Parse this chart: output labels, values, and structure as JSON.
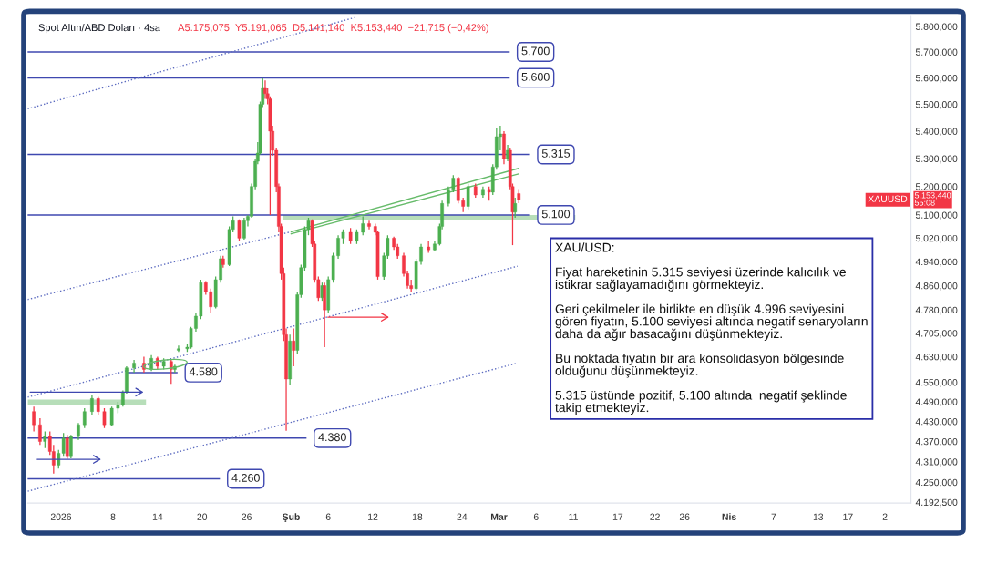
{
  "chart_data": {
    "type": "candlestick",
    "title": "Spot Altın/ABD Doları · 4sa",
    "annotations": [
      "A5.175,075  Y5.191,065  D5.141,140  K5.153,440  −21,715 (−0,42%)",
      "XAUUSD",
      "5.153,440\n55:08",
      "XAU/USD:\n\nFiyat hareketinin 5.315 seviyesi üzerinde kalıcılık ve\nistikrar sağlayamadığını görmekteyiz.\n\nGeri çekilmeler ile birlikte en düşük 4.996 seviyesini\ngören fiyatın, 5.100 seviyesi altında negatif senaryoların\ndaha da ağır basacağını düşünmekteyiz.\n\nBu noktada fiyatın bir ara konsolidasyon bölgesinde\nolduğunu düşünmekteyiz.\n\n5.315 üstünde pozitif, 5.100 altında  negatif şeklinde\ntakip etmekteyiz."
    ],
    "x": [
      "2025-12-28T08:00",
      "2025-12-29T04:00",
      "2025-12-29T20:00",
      "2025-12-30T12:00",
      "2025-12-31T00:00",
      "2025-12-31T16:00",
      "2026-01-01T08:00",
      "2026-01-01T20:00",
      "2026-01-02T08:00",
      "2026-01-03T08:00",
      "2026-01-04T04:00",
      "2026-01-05T04:00",
      "2026-01-06T00:00",
      "2026-01-06T20:00",
      "2026-01-07T20:00",
      "2026-01-08T16:00",
      "2026-01-09T08:00",
      "2026-01-09T20:00",
      "2026-01-10T20:00",
      "2026-01-12T04:00",
      "2026-01-13T04:00",
      "2026-01-14T00:00",
      "2026-01-14T20:00",
      "2026-01-15T20:00",
      "2026-01-16T08:00",
      "2026-01-16T20:00",
      "2026-01-18T00:00",
      "2026-01-18T12:00",
      "2026-01-19T04:00",
      "2026-01-19T20:00",
      "2026-01-20T12:00",
      "2026-01-21T04:00",
      "2026-01-21T20:00",
      "2026-01-22T12:00",
      "2026-01-22T20:00",
      "2026-01-23T16:00",
      "2026-01-24T04:00",
      "2026-01-25T00:00",
      "2026-01-25T16:00",
      "2026-01-26T04:00",
      "2026-01-26T16:00",
      "2026-01-27T04:00",
      "2026-01-27T12:00",
      "2026-01-27T20:00",
      "2026-01-28T04:00",
      "2026-01-28T12:00",
      "2026-01-28T20:00",
      "2026-01-29T04:00",
      "2026-01-29T12:00",
      "2026-01-30T00:00",
      "2026-01-30T08:00",
      "2026-01-30T16:00",
      "2026-01-31T00:00",
      "2026-01-31T08:00",
      "2026-01-31T20:00",
      "2026-02-01T08:00",
      "2026-02-01T20:00",
      "2026-02-02T08:00",
      "2026-02-02T20:00",
      "2026-02-03T08:00",
      "2026-02-03T20:00",
      "2026-02-04T04:00",
      "2026-02-04T16:00",
      "2026-02-05T04:00",
      "2026-02-05T12:00",
      "2026-02-06T00:00",
      "2026-02-06T16:00",
      "2026-02-07T08:00",
      "2026-02-08T00:00",
      "2026-02-09T00:00",
      "2026-02-09T20:00",
      "2026-02-10T16:00",
      "2026-02-11T12:00",
      "2026-02-12T08:00",
      "2026-02-12T16:00",
      "2026-02-13T12:00",
      "2026-02-14T00:00",
      "2026-02-14T20:00",
      "2026-02-15T08:00",
      "2026-02-16T04:00",
      "2026-02-16T16:00",
      "2026-02-17T04:00",
      "2026-02-17T20:00",
      "2026-02-18T12:00",
      "2026-02-19T12:00",
      "2026-02-20T08:00",
      "2026-02-21T00:00",
      "2026-02-21T08:00",
      "2026-02-22T04:00",
      "2026-02-22T20:00",
      "2026-02-23T12:00",
      "2026-02-24T04:00",
      "2026-02-24T20:00",
      "2026-02-25T20:00",
      "2026-02-26T20:00",
      "2026-02-27T16:00",
      "2026-02-28T04:00",
      "2026-02-28T16:00",
      "2026-03-01T04:00",
      "2026-03-01T16:00",
      "2026-03-02T04:00",
      "2026-03-02T12:00",
      "2026-03-02T20:00",
      "2026-03-03T04:00",
      "2026-03-03T16:00"
    ],
    "ohlc": [
      [
        4460,
        4475,
        4400,
        4420
      ],
      [
        4420,
        4440,
        4360,
        4370
      ],
      [
        4370,
        4400,
        4350,
        4385
      ],
      [
        4385,
        4400,
        4330,
        4340
      ],
      [
        4340,
        4360,
        4275,
        4300
      ],
      [
        4300,
        4345,
        4290,
        4335
      ],
      [
        4335,
        4395,
        4325,
        4380
      ],
      [
        4380,
        4390,
        4318,
        4325
      ],
      [
        4325,
        4390,
        4320,
        4385
      ],
      [
        4385,
        4425,
        4375,
        4420
      ],
      [
        4420,
        4470,
        4410,
        4460
      ],
      [
        4460,
        4510,
        4450,
        4500
      ],
      [
        4500,
        4505,
        4450,
        4460
      ],
      [
        4460,
        4470,
        4410,
        4420
      ],
      [
        4420,
        4475,
        4415,
        4470
      ],
      [
        4470,
        4490,
        4455,
        4480
      ],
      [
        4480,
        4525,
        4475,
        4520
      ],
      [
        4520,
        4600,
        4515,
        4595
      ],
      [
        4595,
        4620,
        4580,
        4610
      ],
      [
        4610,
        4630,
        4580,
        4590
      ],
      [
        4590,
        4635,
        4585,
        4625
      ],
      [
        4625,
        4630,
        4590,
        4600
      ],
      [
        4600,
        4625,
        4590,
        4615
      ],
      [
        4615,
        4620,
        4545,
        4590
      ],
      [
        4590,
        4605,
        4580,
        4600
      ],
      [
        4650,
        4665,
        4645,
        4655
      ],
      [
        4655,
        4670,
        4645,
        4660
      ],
      [
        4660,
        4725,
        4655,
        4720
      ],
      [
        4720,
        4770,
        4710,
        4760
      ],
      [
        4760,
        4880,
        4750,
        4870
      ],
      [
        4870,
        4875,
        4830,
        4840
      ],
      [
        4840,
        4850,
        4770,
        4790
      ],
      [
        4790,
        4890,
        4785,
        4880
      ],
      [
        4880,
        4960,
        4870,
        4950
      ],
      [
        4950,
        4960,
        4920,
        4930
      ],
      [
        4930,
        5060,
        4925,
        5050
      ],
      [
        5050,
        5095,
        5040,
        5080
      ],
      [
        5080,
        5085,
        5010,
        5020
      ],
      [
        5020,
        5090,
        5015,
        5080
      ],
      [
        5080,
        5100,
        5060,
        5095
      ],
      [
        5095,
        5210,
        5090,
        5200
      ],
      [
        5200,
        5300,
        5190,
        5290
      ],
      [
        5290,
        5360,
        5280,
        5320
      ],
      [
        5320,
        5510,
        5315,
        5500
      ],
      [
        5500,
        5598,
        5490,
        5560
      ],
      [
        5560,
        5590,
        5520,
        5540
      ],
      [
        5540,
        5560,
        5500,
        5520
      ],
      [
        5520,
        5530,
        5100,
        5400
      ],
      [
        5400,
        5420,
        5310,
        5330
      ],
      [
        5330,
        5340,
        5180,
        5200
      ],
      [
        5200,
        5210,
        5040,
        5060
      ],
      [
        5060,
        5070,
        4880,
        4900
      ],
      [
        4900,
        4920,
        4680,
        4700
      ],
      [
        4700,
        4720,
        4402,
        4560
      ],
      [
        4560,
        4700,
        4540,
        4680
      ],
      [
        4680,
        4720,
        4600,
        4650
      ],
      [
        4650,
        4840,
        4640,
        4830
      ],
      [
        4830,
        4930,
        4820,
        4920
      ],
      [
        4920,
        5060,
        4910,
        5050
      ],
      [
        5050,
        5090,
        5030,
        5080
      ],
      [
        5080,
        5085,
        4990,
        5000
      ],
      [
        5000,
        5010,
        4870,
        4880
      ],
      [
        4880,
        4890,
        4810,
        4820
      ],
      [
        4820,
        4870,
        4810,
        4860
      ],
      [
        4860,
        4870,
        4660,
        4780
      ],
      [
        4780,
        4890,
        4770,
        4880
      ],
      [
        4880,
        4970,
        4870,
        4960
      ],
      [
        4960,
        5030,
        4950,
        5020
      ],
      [
        5020,
        5050,
        5000,
        5040
      ],
      [
        5040,
        5055,
        5000,
        5010
      ],
      [
        5010,
        5050,
        5000,
        5040
      ],
      [
        5040,
        5095,
        5030,
        5070
      ],
      [
        5070,
        5080,
        5050,
        5060
      ],
      [
        5060,
        5070,
        5030,
        5040
      ],
      [
        5040,
        5045,
        4880,
        4890
      ],
      [
        4890,
        4970,
        4880,
        4960
      ],
      [
        4960,
        5030,
        4950,
        5020
      ],
      [
        5020,
        5025,
        4980,
        4990
      ],
      [
        4990,
        5000,
        4950,
        4960
      ],
      [
        4960,
        4970,
        4890,
        4900
      ],
      [
        4900,
        4910,
        4850,
        4860
      ],
      [
        4860,
        4880,
        4840,
        4850
      ],
      [
        4850,
        4950,
        4845,
        4940
      ],
      [
        4940,
        5000,
        4930,
        4990
      ],
      [
        4990,
        5010,
        4970,
        4980
      ],
      [
        4980,
        5010,
        4975,
        5000
      ],
      [
        5000,
        5070,
        4995,
        5060
      ],
      [
        5060,
        5150,
        5050,
        5140
      ],
      [
        5140,
        5200,
        5130,
        5190
      ],
      [
        5190,
        5240,
        5180,
        5230
      ],
      [
        5230,
        5235,
        5140,
        5150
      ],
      [
        5150,
        5160,
        5110,
        5130
      ],
      [
        5130,
        5210,
        5120,
        5200
      ],
      [
        5200,
        5210,
        5160,
        5170
      ],
      [
        5170,
        5200,
        5160,
        5190
      ],
      [
        5190,
        5200,
        5150,
        5180
      ],
      [
        5180,
        5280,
        5170,
        5270
      ],
      [
        5270,
        5410,
        5260,
        5380
      ],
      [
        5380,
        5420,
        5330,
        5390
      ],
      [
        5390,
        5400,
        5280,
        5300
      ],
      [
        5300,
        5350,
        5290,
        5330
      ],
      [
        5330,
        5340,
        5190,
        5200
      ],
      [
        5200,
        5210,
        4996,
        5110
      ],
      [
        5110,
        5160,
        5090,
        5140
      ],
      [
        5175.075,
        5191.065,
        5141.14,
        5153.44
      ]
    ],
    "colors": [
      "#f23645",
      "#f23645",
      "#4caf50",
      "#f23645",
      "#f23645",
      "#4caf50",
      "#4caf50",
      "#f23645",
      "#4caf50",
      "#4caf50",
      "#4caf50",
      "#4caf50",
      "#f23645",
      "#f23645",
      "#4caf50",
      "#4caf50",
      "#4caf50",
      "#4caf50",
      "#4caf50",
      "#f23645",
      "#4caf50",
      "#f23645",
      "#4caf50",
      "#f23645",
      "#4caf50",
      "#4caf50",
      "#4caf50",
      "#4caf50",
      "#4caf50",
      "#4caf50",
      "#f23645",
      "#f23645",
      "#4caf50",
      "#4caf50",
      "#f23645",
      "#4caf50",
      "#4caf50",
      "#f23645",
      "#4caf50",
      "#4caf50",
      "#4caf50",
      "#4caf50",
      "#4caf50",
      "#4caf50",
      "#4caf50",
      "#f23645",
      "#f23645",
      "#f23645",
      "#f23645",
      "#f23645",
      "#f23645",
      "#f23645",
      "#f23645",
      "#f23645",
      "#4caf50",
      "#f23645",
      "#4caf50",
      "#4caf50",
      "#4caf50",
      "#4caf50",
      "#f23645",
      "#f23645",
      "#f23645",
      "#4caf50",
      "#f23645",
      "#4caf50",
      "#4caf50",
      "#4caf50",
      "#4caf50",
      "#f23645",
      "#4caf50",
      "#4caf50",
      "#f23645",
      "#f23645",
      "#f23645",
      "#4caf50",
      "#4caf50",
      "#f23645",
      "#f23645",
      "#f23645",
      "#f23645",
      "#f23645",
      "#4caf50",
      "#4caf50",
      "#f23645",
      "#4caf50",
      "#4caf50",
      "#4caf50",
      "#4caf50",
      "#4caf50",
      "#f23645",
      "#f23645",
      "#4caf50",
      "#f23645",
      "#4caf50",
      "#f23645",
      "#4caf50",
      "#4caf50",
      "#4caf50",
      "#f23645",
      "#4caf50",
      "#f23645",
      "#f23645",
      "#4caf50",
      "#f23645"
    ],
    "series": [
      {
        "type": "line",
        "color": "#5c6bc0",
        "line_style": "dotted",
        "x": [
          "2025-12-27T12:00",
          "2026-02-09T12:00"
        ],
        "values": [
          5483,
          5835
        ]
      },
      {
        "type": "line",
        "color": "#5c6bc0",
        "line_style": "dotted",
        "x": [
          "2025-12-27T12:00",
          "2026-02-01T00:00"
        ],
        "values": [
          4814,
          5042
        ]
      },
      {
        "type": "line",
        "color": "#5c6bc0",
        "line_style": "dotted",
        "x": [
          "2025-12-27T12:00",
          "2026-03-03T12:00"
        ],
        "values": [
          4504,
          4925
        ]
      },
      {
        "type": "line",
        "color": "#5c6bc0",
        "line_style": "dotted",
        "x": [
          "2025-12-27T12:00",
          "2026-03-03T12:00"
        ],
        "values": [
          4224,
          4610
        ]
      },
      {
        "type": "line",
        "color": "#66bb6a",
        "line_style": "solid",
        "x": [
          "2026-02-01T00:00",
          "2026-03-03T16:00"
        ],
        "values": [
          5042,
          5265
        ]
      },
      {
        "type": "line",
        "color": "#66bb6a",
        "line_style": "solid",
        "x": [
          "2026-02-01T00:00",
          "2026-03-03T16:00"
        ],
        "values": [
          5035,
          5245
        ]
      }
    ],
    "ref_lines": [
      {
        "axis": "y",
        "value": 5700,
        "label": "5.700",
        "color": "#3f48b0"
      },
      {
        "axis": "y",
        "value": 5600,
        "label": "5.600",
        "color": "#3f48b0"
      },
      {
        "axis": "y",
        "value": 5315,
        "label": "5.315",
        "color": "#3f48b0"
      },
      {
        "axis": "y",
        "value": 5100,
        "label": "5.100",
        "color": "#3f48b0"
      },
      {
        "axis": "y",
        "value": 4580,
        "label": "4.580",
        "color": "#3f48b0"
      },
      {
        "axis": "y",
        "value": 4380,
        "label": "4.380",
        "color": "#3f48b0"
      },
      {
        "axis": "y",
        "value": 4260,
        "label": "4.260",
        "color": "#3f48b0"
      }
    ],
    "bands": [
      {
        "axis": "y",
        "from": 5083,
        "to": 5100,
        "color": "#a5d6a7"
      },
      {
        "axis": "y",
        "from": 4480,
        "to": 4497,
        "color": "#a5d6a7"
      }
    ],
    "log": true,
    "ylim": [
      4190,
      5840
    ],
    "yticks": [
      {
        "value": 4192.5,
        "label": "4.192,500"
      },
      {
        "value": 4250,
        "label": "4.250,000"
      },
      {
        "value": 4310,
        "label": "4.310,000"
      },
      {
        "value": 4370,
        "label": "4.370,000"
      },
      {
        "value": 4430,
        "label": "4.430,000"
      },
      {
        "value": 4490,
        "label": "4.490,000"
      },
      {
        "value": 4550,
        "label": "4.550,000"
      },
      {
        "value": 4630,
        "label": "4.630,000"
      },
      {
        "value": 4705,
        "label": "4.705,000"
      },
      {
        "value": 4780,
        "label": "4.780,000"
      },
      {
        "value": 4860,
        "label": "4.860,000"
      },
      {
        "value": 4940,
        "label": "4.940,000"
      },
      {
        "value": 5020,
        "label": "5.020,000"
      },
      {
        "value": 5100,
        "label": "5.100,000"
      },
      {
        "value": 5200,
        "label": "5.200,000"
      },
      {
        "value": 5300,
        "label": "5.300,000"
      },
      {
        "value": 5400,
        "label": "5.400,000"
      },
      {
        "value": 5500,
        "label": "5.500,000"
      },
      {
        "value": 5600,
        "label": "5.600,000"
      },
      {
        "value": 5700,
        "label": "5.700,000"
      },
      {
        "value": 5800,
        "label": "5.800,000"
      }
    ],
    "xlim": [
      "2025-12-27T12:00",
      "2026-04-25T12:00"
    ],
    "xticks": [
      {
        "value": "2026-01-01",
        "label": "2026"
      },
      {
        "value": "2026-01-08",
        "label": "8"
      },
      {
        "value": "2026-01-14",
        "label": "14"
      },
      {
        "value": "2026-01-20",
        "label": "20"
      },
      {
        "value": "2026-01-26",
        "label": "26"
      },
      {
        "value": "2026-02-01",
        "label": "Şub"
      },
      {
        "value": "2026-02-06",
        "label": "6"
      },
      {
        "value": "2026-02-12",
        "label": "12"
      },
      {
        "value": "2026-02-18",
        "label": "18"
      },
      {
        "value": "2026-02-24",
        "label": "24"
      },
      {
        "value": "2026-03-01",
        "label": "Mar"
      },
      {
        "value": "2026-03-06",
        "label": "6"
      },
      {
        "value": "2026-03-11",
        "label": "11"
      },
      {
        "value": "2026-03-17",
        "label": "17"
      },
      {
        "value": "2026-03-22",
        "label": "22"
      },
      {
        "value": "2026-03-26",
        "label": "26"
      },
      {
        "value": "2026-04-01",
        "label": "Nis"
      },
      {
        "value": "2026-04-07",
        "label": "7"
      },
      {
        "value": "2026-04-13",
        "label": "13"
      },
      {
        "value": "2026-04-17",
        "label": "17"
      },
      {
        "value": "2026-04-22",
        "label": "2"
      }
    ],
    "grid": false
  }
}
